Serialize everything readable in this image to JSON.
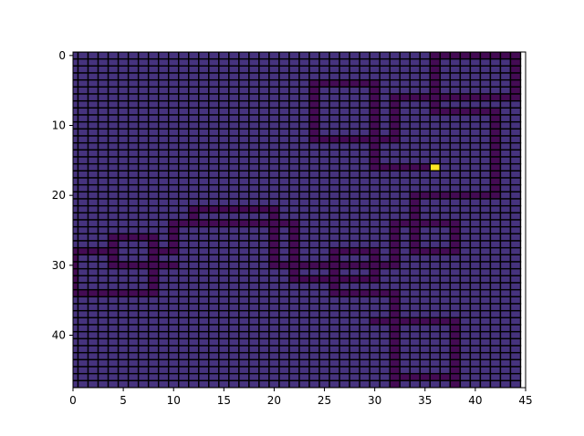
{
  "chart_data": {
    "type": "heatmap",
    "rows": 48,
    "cols": 45,
    "xlim": [
      0,
      45
    ],
    "ylim": [
      47.5,
      -0.5
    ],
    "x_ticks": [
      0,
      5,
      10,
      15,
      20,
      25,
      30,
      35,
      40,
      45
    ],
    "x_tick_labels": [
      "0",
      "5",
      "10",
      "15",
      "20",
      "25",
      "30",
      "35",
      "40",
      "45"
    ],
    "y_ticks": [
      0,
      10,
      20,
      30,
      40
    ],
    "y_tick_labels": [
      "0",
      "10",
      "20",
      "30",
      "40"
    ],
    "title": "",
    "xlabel": "",
    "ylabel": "",
    "grid": true,
    "colormap": "viridis",
    "cell_values": {
      "background": 0.2,
      "path": 0.05,
      "goal": 1.0
    },
    "colors": {
      "background": "#46337e",
      "path": "#440b54",
      "goal": "#fde725",
      "grid_line": "#000000"
    },
    "path_cells": [
      {
        "row": 0,
        "col_start": 36,
        "col_end": 44
      },
      {
        "row": 0,
        "col_start": 44,
        "col_end": 44
      },
      {
        "row": 1,
        "col_start": 36,
        "col_end": 36
      },
      {
        "row": 1,
        "col_start": 44,
        "col_end": 44
      },
      {
        "row": 2,
        "col_start": 36,
        "col_end": 36
      },
      {
        "row": 2,
        "col_start": 44,
        "col_end": 44
      },
      {
        "row": 3,
        "col_start": 36,
        "col_end": 36
      },
      {
        "row": 3,
        "col_start": 44,
        "col_end": 44
      },
      {
        "row": 4,
        "col_start": 24,
        "col_end": 30
      },
      {
        "row": 4,
        "col_start": 36,
        "col_end": 36
      },
      {
        "row": 4,
        "col_start": 44,
        "col_end": 44
      },
      {
        "row": 5,
        "col_start": 24,
        "col_end": 24
      },
      {
        "row": 5,
        "col_start": 30,
        "col_end": 30
      },
      {
        "row": 5,
        "col_start": 36,
        "col_end": 36
      },
      {
        "row": 5,
        "col_start": 44,
        "col_end": 44
      },
      {
        "row": 6,
        "col_start": 24,
        "col_end": 24
      },
      {
        "row": 6,
        "col_start": 30,
        "col_end": 30
      },
      {
        "row": 6,
        "col_start": 32,
        "col_end": 44
      },
      {
        "row": 7,
        "col_start": 24,
        "col_end": 24
      },
      {
        "row": 7,
        "col_start": 30,
        "col_end": 30
      },
      {
        "row": 7,
        "col_start": 32,
        "col_end": 32
      },
      {
        "row": 7,
        "col_start": 36,
        "col_end": 36
      },
      {
        "row": 8,
        "col_start": 24,
        "col_end": 24
      },
      {
        "row": 8,
        "col_start": 30,
        "col_end": 30
      },
      {
        "row": 8,
        "col_start": 32,
        "col_end": 32
      },
      {
        "row": 8,
        "col_start": 36,
        "col_end": 42
      },
      {
        "row": 9,
        "col_start": 24,
        "col_end": 24
      },
      {
        "row": 9,
        "col_start": 30,
        "col_end": 30
      },
      {
        "row": 9,
        "col_start": 32,
        "col_end": 32
      },
      {
        "row": 9,
        "col_start": 42,
        "col_end": 42
      },
      {
        "row": 10,
        "col_start": 24,
        "col_end": 24
      },
      {
        "row": 10,
        "col_start": 30,
        "col_end": 30
      },
      {
        "row": 10,
        "col_start": 32,
        "col_end": 32
      },
      {
        "row": 10,
        "col_start": 42,
        "col_end": 42
      },
      {
        "row": 11,
        "col_start": 24,
        "col_end": 24
      },
      {
        "row": 11,
        "col_start": 30,
        "col_end": 30
      },
      {
        "row": 11,
        "col_start": 32,
        "col_end": 32
      },
      {
        "row": 11,
        "col_start": 42,
        "col_end": 42
      },
      {
        "row": 12,
        "col_start": 24,
        "col_end": 32
      },
      {
        "row": 12,
        "col_start": 42,
        "col_end": 42
      },
      {
        "row": 13,
        "col_start": 30,
        "col_end": 30
      },
      {
        "row": 13,
        "col_start": 42,
        "col_end": 42
      },
      {
        "row": 14,
        "col_start": 30,
        "col_end": 30
      },
      {
        "row": 14,
        "col_start": 42,
        "col_end": 42
      },
      {
        "row": 15,
        "col_start": 30,
        "col_end": 30
      },
      {
        "row": 15,
        "col_start": 42,
        "col_end": 42
      },
      {
        "row": 16,
        "col_start": 30,
        "col_end": 35
      },
      {
        "row": 16,
        "col_start": 42,
        "col_end": 42
      },
      {
        "row": 17,
        "col_start": 42,
        "col_end": 42
      },
      {
        "row": 18,
        "col_start": 42,
        "col_end": 42
      },
      {
        "row": 19,
        "col_start": 42,
        "col_end": 42
      },
      {
        "row": 20,
        "col_start": 34,
        "col_end": 42
      },
      {
        "row": 21,
        "col_start": 34,
        "col_end": 34
      },
      {
        "row": 22,
        "col_start": 12,
        "col_end": 20
      },
      {
        "row": 22,
        "col_start": 34,
        "col_end": 34
      },
      {
        "row": 23,
        "col_start": 12,
        "col_end": 12
      },
      {
        "row": 23,
        "col_start": 20,
        "col_end": 20
      },
      {
        "row": 23,
        "col_start": 34,
        "col_end": 34
      },
      {
        "row": 24,
        "col_start": 10,
        "col_end": 22
      },
      {
        "row": 24,
        "col_start": 32,
        "col_end": 38
      },
      {
        "row": 25,
        "col_start": 10,
        "col_end": 10
      },
      {
        "row": 25,
        "col_start": 20,
        "col_end": 20
      },
      {
        "row": 25,
        "col_start": 22,
        "col_end": 22
      },
      {
        "row": 25,
        "col_start": 32,
        "col_end": 32
      },
      {
        "row": 25,
        "col_start": 34,
        "col_end": 34
      },
      {
        "row": 25,
        "col_start": 38,
        "col_end": 38
      },
      {
        "row": 26,
        "col_start": 4,
        "col_end": 8
      },
      {
        "row": 26,
        "col_start": 10,
        "col_end": 10
      },
      {
        "row": 26,
        "col_start": 20,
        "col_end": 20
      },
      {
        "row": 26,
        "col_start": 22,
        "col_end": 22
      },
      {
        "row": 26,
        "col_start": 32,
        "col_end": 32
      },
      {
        "row": 26,
        "col_start": 34,
        "col_end": 34
      },
      {
        "row": 26,
        "col_start": 38,
        "col_end": 38
      },
      {
        "row": 27,
        "col_start": 4,
        "col_end": 4
      },
      {
        "row": 27,
        "col_start": 8,
        "col_end": 8
      },
      {
        "row": 27,
        "col_start": 10,
        "col_end": 10
      },
      {
        "row": 27,
        "col_start": 20,
        "col_end": 20
      },
      {
        "row": 27,
        "col_start": 22,
        "col_end": 22
      },
      {
        "row": 27,
        "col_start": 32,
        "col_end": 32
      },
      {
        "row": 27,
        "col_start": 34,
        "col_end": 34
      },
      {
        "row": 27,
        "col_start": 38,
        "col_end": 38
      },
      {
        "row": 28,
        "col_start": 0,
        "col_end": 4
      },
      {
        "row": 28,
        "col_start": 8,
        "col_end": 10
      },
      {
        "row": 28,
        "col_start": 20,
        "col_end": 20
      },
      {
        "row": 28,
        "col_start": 22,
        "col_end": 22
      },
      {
        "row": 28,
        "col_start": 26,
        "col_end": 30
      },
      {
        "row": 28,
        "col_start": 32,
        "col_end": 32
      },
      {
        "row": 28,
        "col_start": 34,
        "col_end": 38
      },
      {
        "row": 29,
        "col_start": 0,
        "col_end": 0
      },
      {
        "row": 29,
        "col_start": 4,
        "col_end": 4
      },
      {
        "row": 29,
        "col_start": 8,
        "col_end": 8
      },
      {
        "row": 29,
        "col_start": 20,
        "col_end": 20
      },
      {
        "row": 29,
        "col_start": 22,
        "col_end": 22
      },
      {
        "row": 29,
        "col_start": 26,
        "col_end": 26
      },
      {
        "row": 29,
        "col_start": 30,
        "col_end": 30
      },
      {
        "row": 29,
        "col_start": 32,
        "col_end": 32
      },
      {
        "row": 30,
        "col_start": 0,
        "col_end": 0
      },
      {
        "row": 30,
        "col_start": 4,
        "col_end": 10
      },
      {
        "row": 30,
        "col_start": 20,
        "col_end": 32
      },
      {
        "row": 31,
        "col_start": 0,
        "col_end": 0
      },
      {
        "row": 31,
        "col_start": 8,
        "col_end": 8
      },
      {
        "row": 31,
        "col_start": 22,
        "col_end": 22
      },
      {
        "row": 31,
        "col_start": 26,
        "col_end": 26
      },
      {
        "row": 31,
        "col_start": 30,
        "col_end": 30
      },
      {
        "row": 32,
        "col_start": 0,
        "col_end": 0
      },
      {
        "row": 32,
        "col_start": 8,
        "col_end": 8
      },
      {
        "row": 32,
        "col_start": 22,
        "col_end": 30
      },
      {
        "row": 33,
        "col_start": 0,
        "col_end": 0
      },
      {
        "row": 33,
        "col_start": 8,
        "col_end": 8
      },
      {
        "row": 33,
        "col_start": 26,
        "col_end": 26
      },
      {
        "row": 34,
        "col_start": 0,
        "col_end": 8
      },
      {
        "row": 34,
        "col_start": 26,
        "col_end": 32
      },
      {
        "row": 35,
        "col_start": 32,
        "col_end": 32
      },
      {
        "row": 36,
        "col_start": 32,
        "col_end": 32
      },
      {
        "row": 37,
        "col_start": 32,
        "col_end": 32
      },
      {
        "row": 38,
        "col_start": 30,
        "col_end": 38
      },
      {
        "row": 39,
        "col_start": 32,
        "col_end": 32
      },
      {
        "row": 39,
        "col_start": 38,
        "col_end": 38
      },
      {
        "row": 40,
        "col_start": 32,
        "col_end": 32
      },
      {
        "row": 40,
        "col_start": 38,
        "col_end": 38
      },
      {
        "row": 41,
        "col_start": 32,
        "col_end": 32
      },
      {
        "row": 41,
        "col_start": 38,
        "col_end": 38
      },
      {
        "row": 42,
        "col_start": 32,
        "col_end": 32
      },
      {
        "row": 42,
        "col_start": 38,
        "col_end": 38
      },
      {
        "row": 43,
        "col_start": 32,
        "col_end": 32
      },
      {
        "row": 43,
        "col_start": 38,
        "col_end": 38
      },
      {
        "row": 44,
        "col_start": 32,
        "col_end": 32
      },
      {
        "row": 44,
        "col_start": 38,
        "col_end": 38
      },
      {
        "row": 45,
        "col_start": 32,
        "col_end": 32
      },
      {
        "row": 45,
        "col_start": 38,
        "col_end": 38
      },
      {
        "row": 46,
        "col_start": 32,
        "col_end": 38
      },
      {
        "row": 47,
        "col_start": 32,
        "col_end": 32
      },
      {
        "row": 47,
        "col_start": 38,
        "col_end": 38
      }
    ],
    "goal_cells": [
      {
        "row": 16,
        "col": 36
      }
    ]
  }
}
